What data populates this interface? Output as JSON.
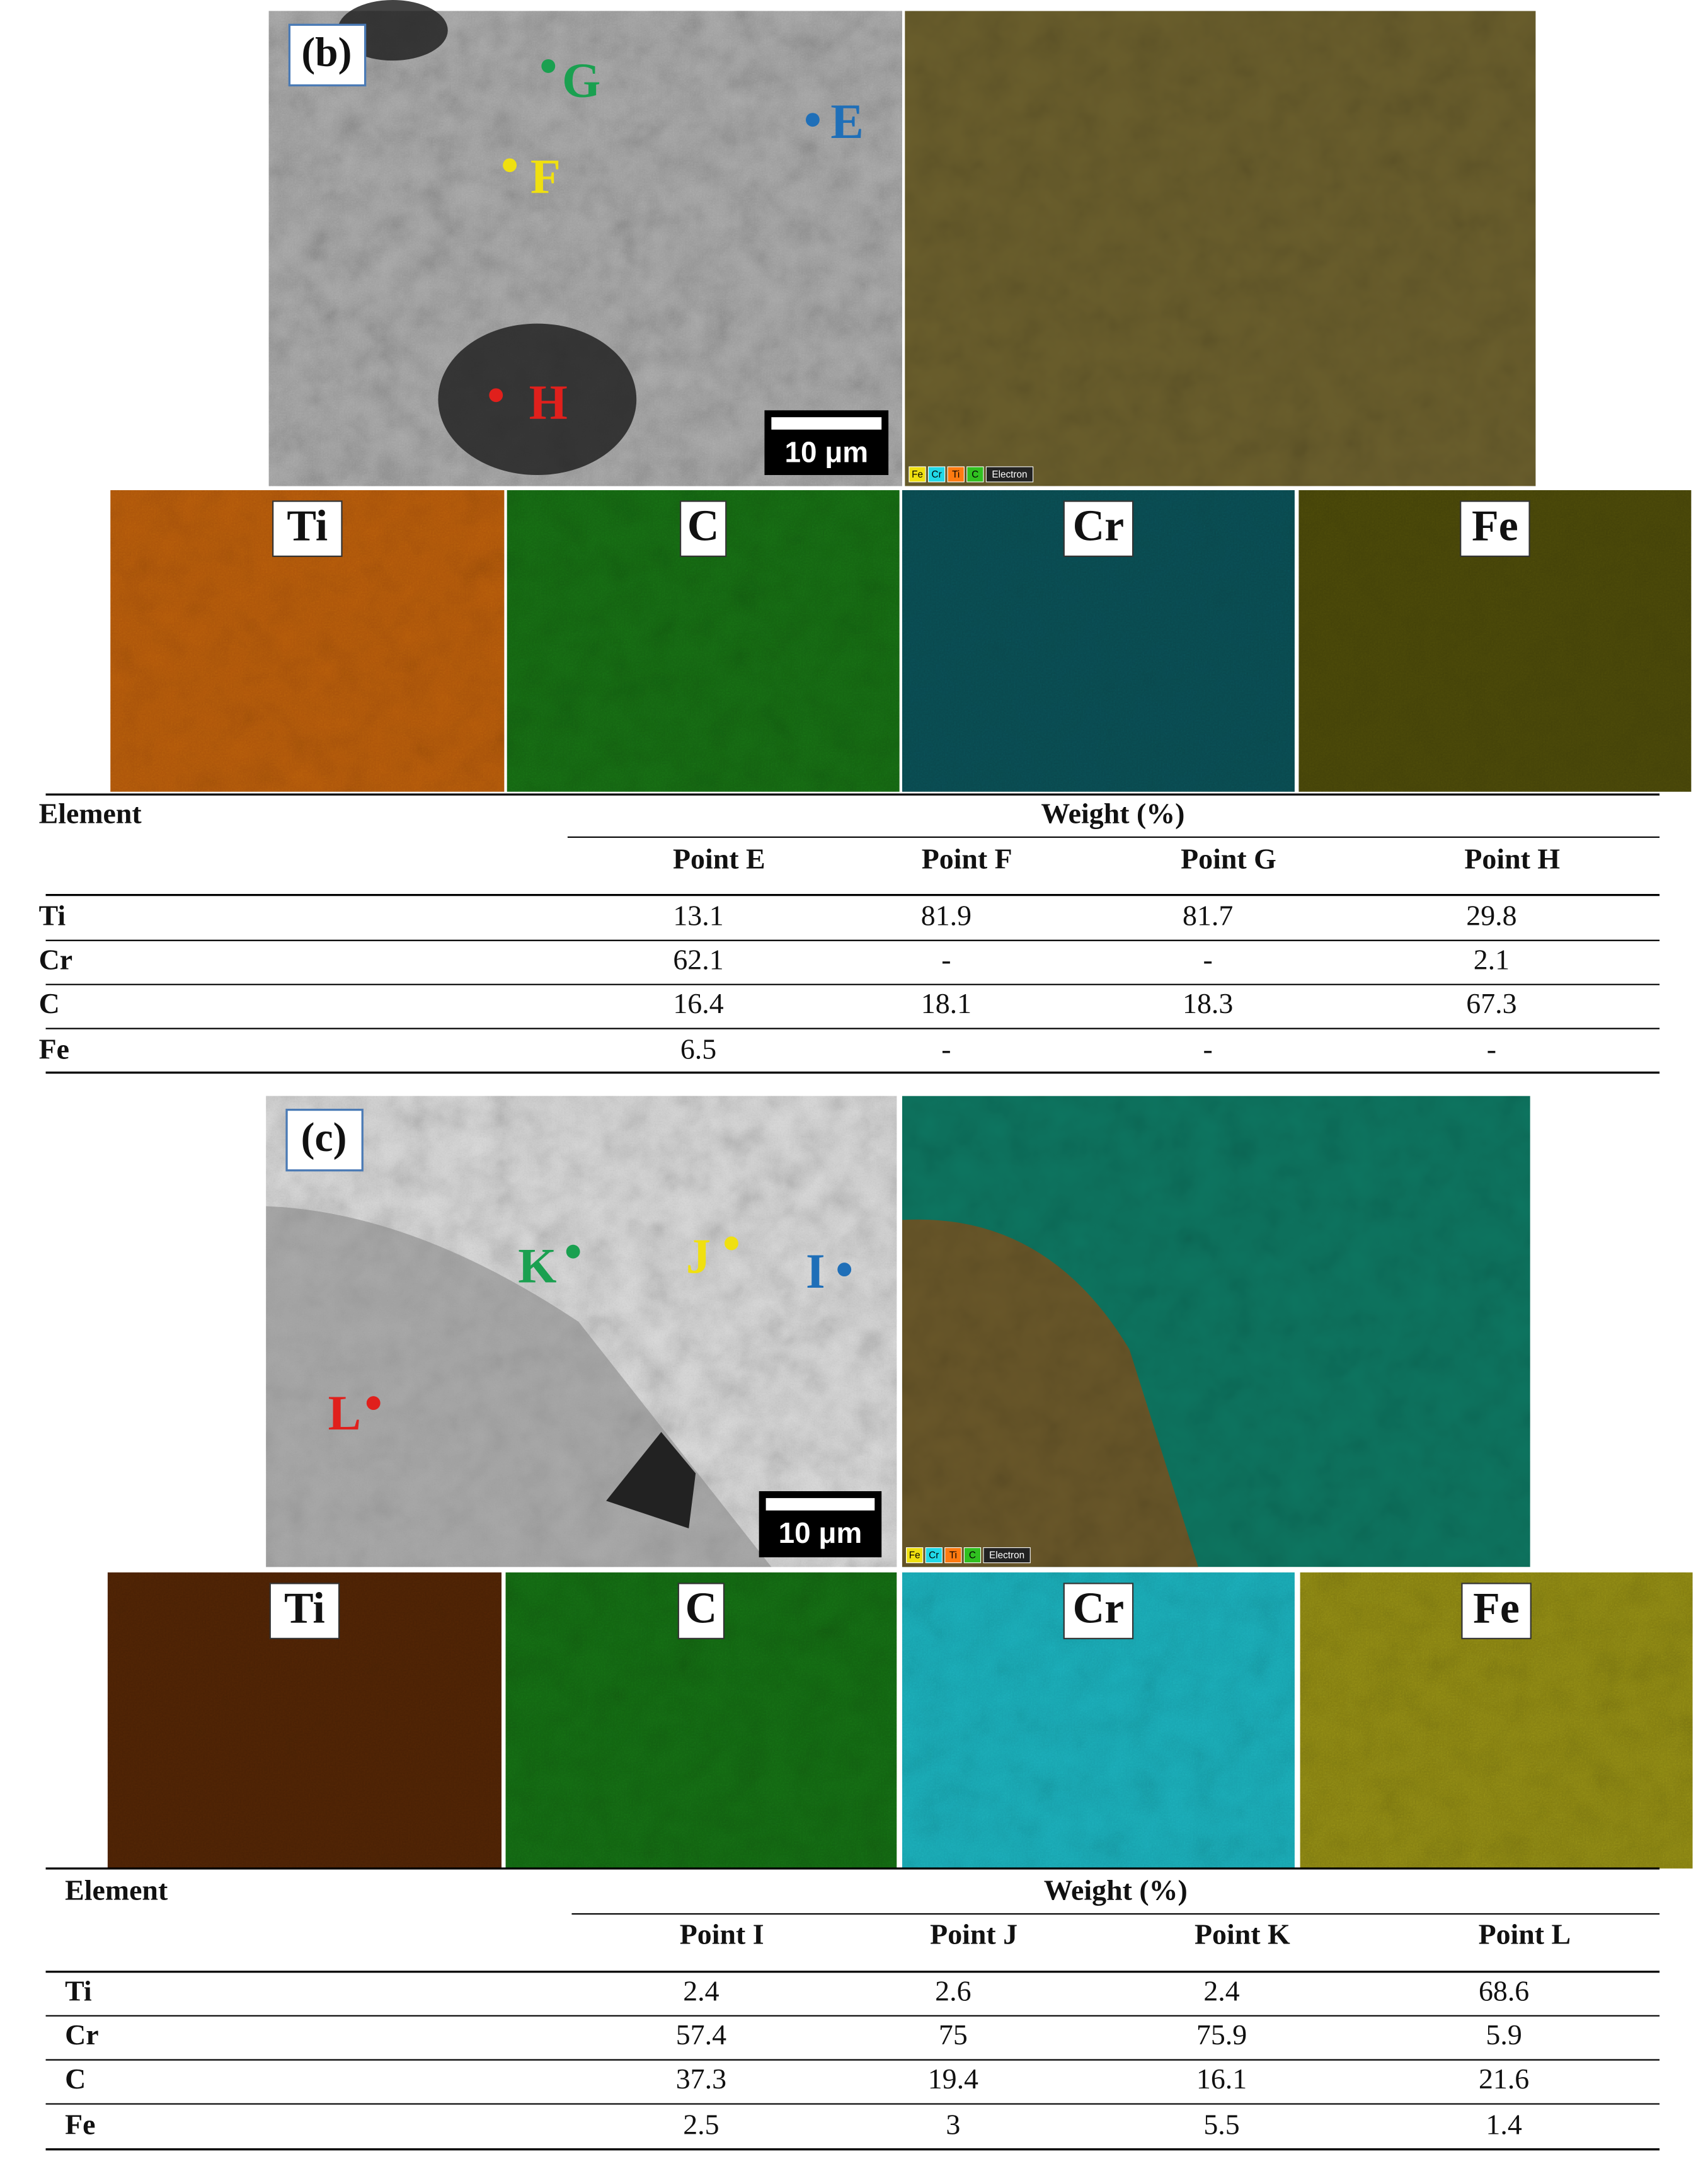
{
  "panels": [
    {
      "label": "(b)",
      "scale_bar": "10 μm",
      "points": [
        {
          "label": "G",
          "color": "#1aa050"
        },
        {
          "label": "E",
          "color": "#1f6fb8"
        },
        {
          "label": "F",
          "color": "#f0e010"
        },
        {
          "label": "H",
          "color": "#e0201c"
        }
      ],
      "overlay_legend": [
        "Fe",
        "Cr",
        "Ti",
        "C",
        "Electron"
      ],
      "maps": [
        "Ti",
        "C",
        "Cr",
        "Fe"
      ],
      "table": {
        "header": "Element",
        "group": "Weight (%)",
        "columns": [
          "Point E",
          "Point F",
          "Point G",
          "Point H"
        ],
        "rows": [
          [
            "Ti",
            13.1,
            81.9,
            81.7,
            29.8
          ],
          [
            "Cr",
            62.1,
            "-",
            "-",
            2.1
          ],
          [
            "C",
            16.4,
            18.1,
            18.3,
            67.3
          ],
          [
            "Fe",
            6.5,
            "-",
            "-",
            "-"
          ]
        ]
      }
    },
    {
      "label": "(c)",
      "scale_bar": "10 μm",
      "points": [
        {
          "label": "K",
          "color": "#1aa050"
        },
        {
          "label": "J",
          "color": "#f0e010"
        },
        {
          "label": "I",
          "color": "#1f6fb8"
        },
        {
          "label": "L",
          "color": "#e0201c"
        }
      ],
      "overlay_legend": [
        "Fe",
        "Cr",
        "Ti",
        "C",
        "Electron"
      ],
      "maps": [
        "Ti",
        "C",
        "Cr",
        "Fe"
      ],
      "table": {
        "header": "Element",
        "group": "Weight (%)",
        "columns": [
          "Point I",
          "Point J",
          "Point K",
          "Point L"
        ],
        "rows": [
          [
            "Ti",
            2.4,
            2.6,
            2.4,
            68.6
          ],
          [
            "Cr",
            57.4,
            75,
            75.9,
            5.9
          ],
          [
            "C",
            37.3,
            19.4,
            16.1,
            21.6
          ],
          [
            "Fe",
            2.5,
            3,
            5.5,
            1.4
          ]
        ]
      }
    }
  ]
}
